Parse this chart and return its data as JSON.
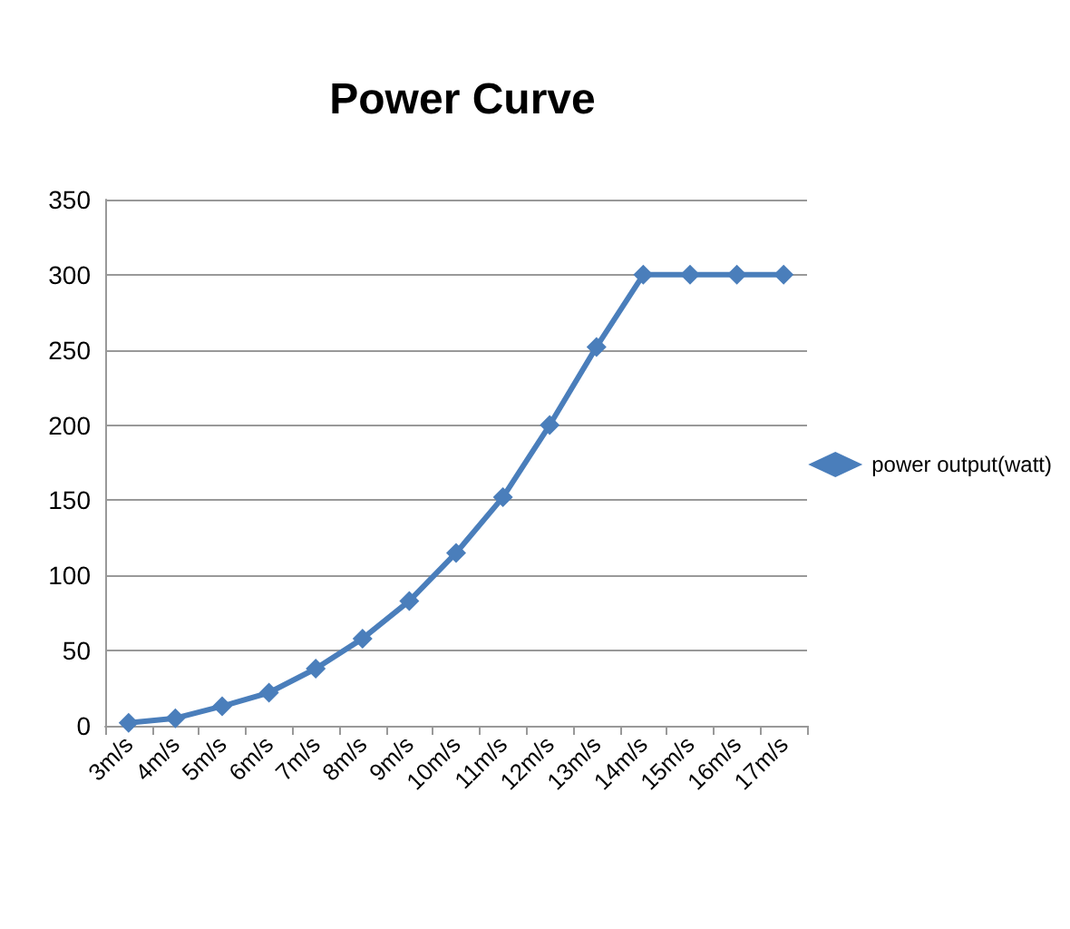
{
  "chart_data": {
    "type": "line",
    "title": "Power Curve",
    "categories": [
      "3m/s",
      "4m/s",
      "5m/s",
      "6m/s",
      "7m/s",
      "8m/s",
      "9m/s",
      "10m/s",
      "11m/s",
      "12m/s",
      "13m/s",
      "14m/s",
      "15m/s",
      "16m/s",
      "17m/s"
    ],
    "series": [
      {
        "name": "power output(watt)",
        "color": "#4a7ebb",
        "values": [
          2,
          5,
          13,
          22,
          38,
          58,
          83,
          115,
          152,
          200,
          252,
          300,
          300,
          300,
          300
        ]
      }
    ],
    "ylim": [
      0,
      350
    ],
    "yticks": [
      0,
      50,
      100,
      150,
      200,
      250,
      300,
      350
    ],
    "grid": "y",
    "legend": "right",
    "marker": "diamond",
    "line_style": "solid"
  }
}
